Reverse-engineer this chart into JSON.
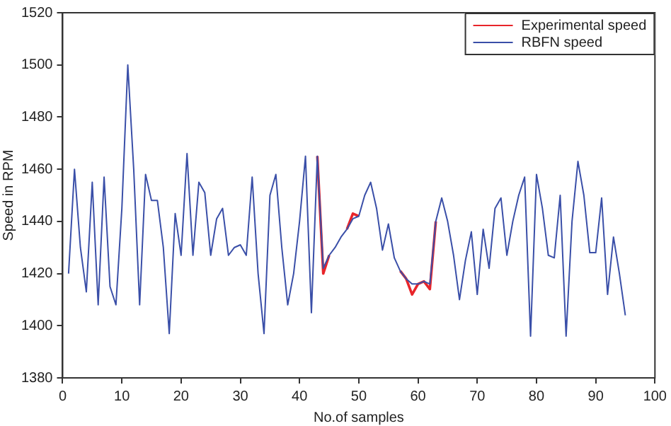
{
  "chart_data": {
    "type": "line",
    "xlabel": "No.of samples",
    "ylabel": "Speed in RPM",
    "x": [
      1,
      2,
      3,
      4,
      5,
      6,
      7,
      8,
      9,
      10,
      11,
      12,
      13,
      14,
      15,
      16,
      17,
      18,
      19,
      20,
      21,
      22,
      23,
      24,
      25,
      26,
      27,
      28,
      29,
      30,
      31,
      32,
      33,
      34,
      35,
      36,
      37,
      38,
      39,
      40,
      41,
      42,
      43,
      44,
      45,
      46,
      47,
      48,
      49,
      50,
      51,
      52,
      53,
      54,
      55,
      56,
      57,
      58,
      59,
      60,
      61,
      62,
      63,
      64,
      65,
      66,
      67,
      68,
      69,
      70,
      71,
      72,
      73,
      74,
      75,
      76,
      77,
      78,
      79,
      80,
      81,
      82,
      83,
      84,
      85,
      86,
      87,
      88,
      89,
      90,
      91,
      92,
      93,
      94,
      95
    ],
    "xlim": [
      0,
      100
    ],
    "xticks": [
      0,
      10,
      20,
      30,
      40,
      50,
      60,
      70,
      80,
      90,
      100
    ],
    "ylim": [
      1380,
      1520
    ],
    "yticks": [
      1380,
      1400,
      1420,
      1440,
      1460,
      1480,
      1500,
      1520
    ],
    "grid": false,
    "legend": "top right",
    "marker": "none",
    "line_style": "solid",
    "series": [
      {
        "name": "Experimental speed",
        "color": "#e8252a",
        "values": [
          null,
          null,
          null,
          null,
          null,
          null,
          null,
          null,
          null,
          null,
          null,
          null,
          null,
          null,
          null,
          null,
          null,
          null,
          null,
          null,
          null,
          null,
          null,
          null,
          null,
          null,
          null,
          null,
          null,
          null,
          null,
          null,
          null,
          null,
          null,
          null,
          null,
          null,
          null,
          null,
          null,
          null,
          1465,
          1420,
          1427,
          null,
          null,
          1437,
          1443,
          1442,
          null,
          null,
          null,
          null,
          null,
          null,
          1421,
          1418,
          1412,
          1416,
          1417,
          1414,
          1440,
          null,
          null,
          null,
          null,
          null,
          null,
          null,
          null,
          null,
          null,
          null,
          null,
          null,
          null,
          null,
          null,
          null,
          null,
          null,
          null,
          null,
          null,
          null,
          null,
          null,
          null,
          null,
          null,
          null,
          null,
          null,
          null
        ]
      },
      {
        "name": "RBFN speed",
        "color": "#3a4fa8",
        "values": [
          1420,
          1460,
          1430,
          1413,
          1455,
          1408,
          1457,
          1415,
          1408,
          1445,
          1500,
          1460,
          1408,
          1458,
          1448,
          1448,
          1430,
          1397,
          1443,
          1427,
          1466,
          1427,
          1455,
          1451,
          1427,
          1441,
          1445,
          1427,
          1430,
          1431,
          1427,
          1457,
          1420,
          1397,
          1450,
          1458,
          1430,
          1408,
          1420,
          1440,
          1465,
          1405,
          1465,
          1422,
          1427,
          1430,
          1434,
          1437,
          1441,
          1442,
          1450,
          1455,
          1445,
          1429,
          1439,
          1426,
          1421,
          1418,
          1416,
          1416,
          1417,
          1416,
          1440,
          1449,
          1440,
          1427,
          1410,
          1425,
          1436,
          1412,
          1437,
          1422,
          1445,
          1449,
          1427,
          1440,
          1450,
          1457,
          1396,
          1458,
          1445,
          1427,
          1426,
          1450,
          1396,
          1440,
          1463,
          1450,
          1428,
          1428,
          1449,
          1412,
          1434,
          1420,
          1404
        ]
      }
    ]
  }
}
